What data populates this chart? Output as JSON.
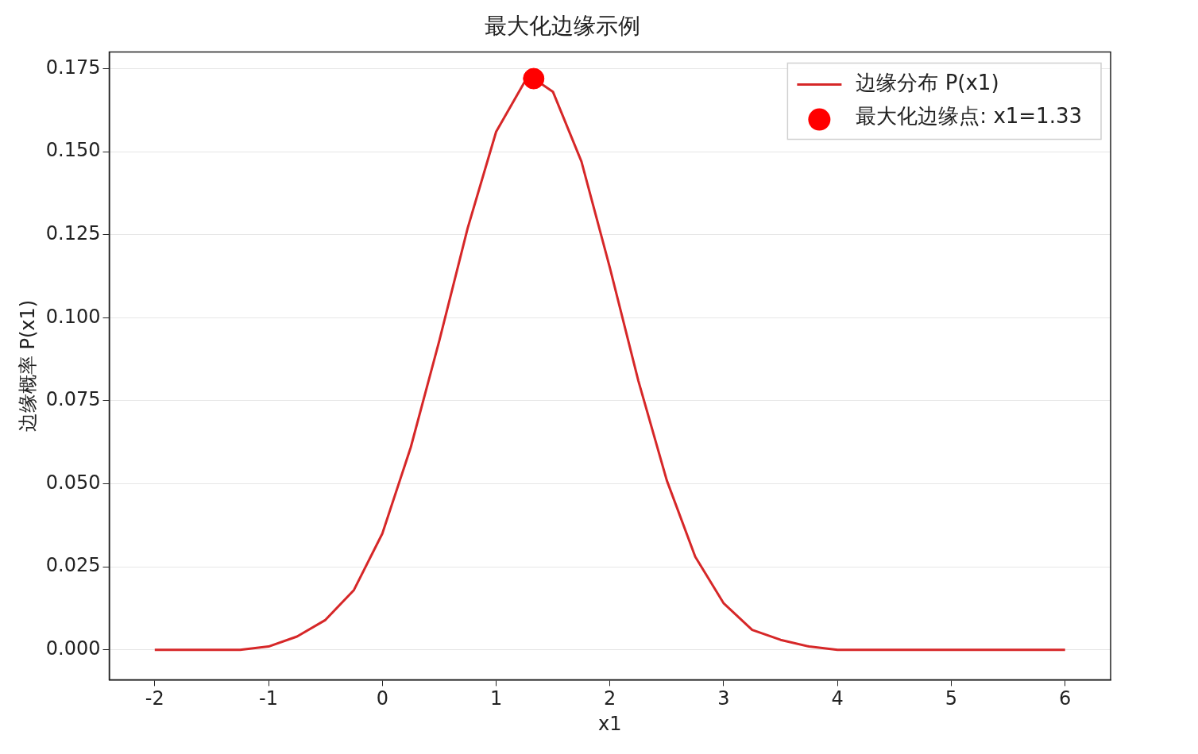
{
  "chart_data": {
    "type": "line",
    "title": "最大化边缘示例",
    "xlabel": "x1",
    "ylabel": "边缘概率 P(x1)",
    "xlim": [
      -2.4,
      6.4
    ],
    "xticks": [
      -2,
      -1,
      0,
      1,
      2,
      3,
      4,
      5,
      6
    ],
    "ylim": [
      -0.009,
      0.18
    ],
    "yticks": [
      {
        "value": 0,
        "label": "0.000"
      },
      0.025,
      {
        "value": 0.05,
        "label": "0.050"
      },
      0.075,
      {
        "value": 0.1,
        "label": "0.100"
      },
      0.125,
      {
        "value": 0.15,
        "label": "0.150"
      },
      0.175
    ],
    "grid": "y",
    "legend": "top right",
    "series": [
      {
        "name": "边缘分布 P(x1)",
        "type": "line",
        "color": "#d62728",
        "marker": "none",
        "line_style": "solid",
        "x": [
          -2,
          -1.75,
          -1.5,
          -1.25,
          -1,
          -0.75,
          -0.5,
          -0.25,
          0,
          0.25,
          0.5,
          0.75,
          1,
          1.25,
          1.33,
          1.5,
          1.75,
          2,
          2.25,
          2.5,
          2.75,
          3,
          3.25,
          3.5,
          3.75,
          4,
          4.25,
          4.5,
          5,
          5.5,
          6
        ],
        "values": [
          0.0,
          0.0,
          0.0,
          0.0,
          0.001,
          0.004,
          0.009,
          0.018,
          0.035,
          0.061,
          0.093,
          0.127,
          0.156,
          0.171,
          0.172,
          0.168,
          0.147,
          0.115,
          0.081,
          0.051,
          0.028,
          0.014,
          0.006,
          0.003,
          0.001,
          0.0,
          0.0,
          0.0,
          0.0,
          0.0,
          0.0
        ]
      },
      {
        "name": "最大化边缘点: x1=1.33",
        "type": "scatter",
        "color": "#ff0000",
        "marker": "circle",
        "x": [
          1.33
        ],
        "values": [
          0.172
        ]
      }
    ]
  }
}
